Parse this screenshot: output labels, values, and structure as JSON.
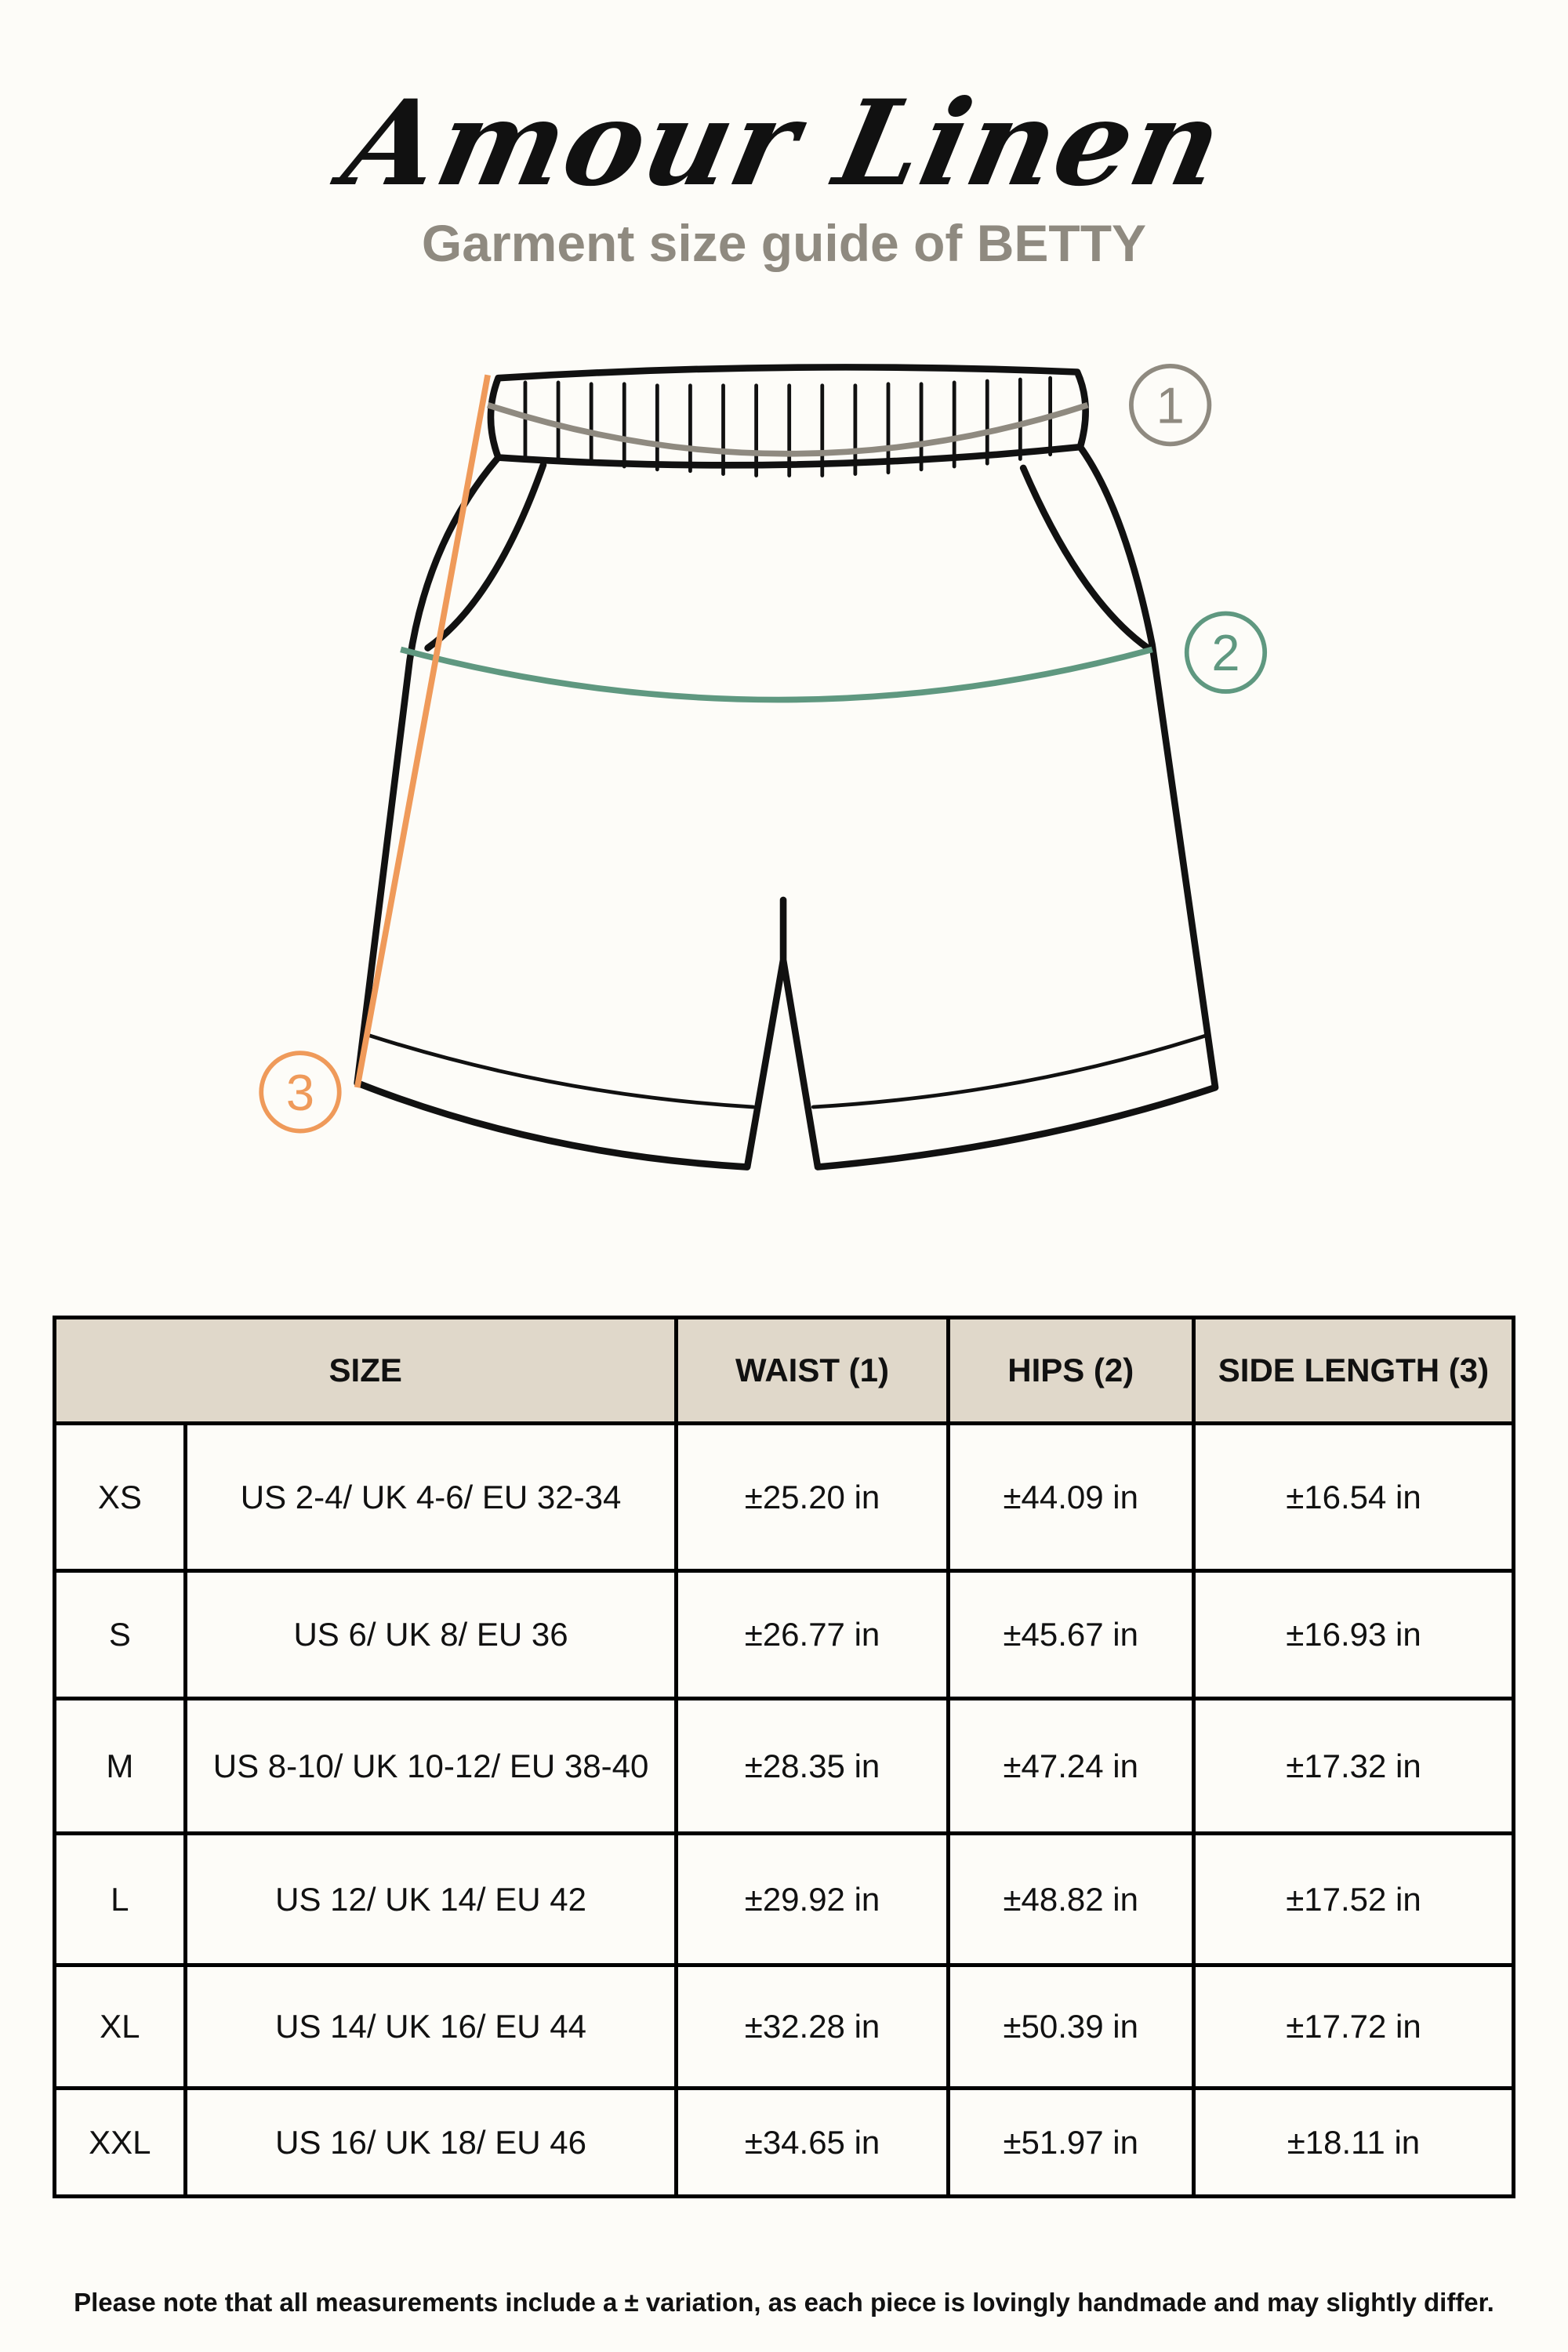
{
  "logo": "Amour Linen",
  "subtitle": "Garment size guide of BETTY",
  "markers": [
    {
      "label": "1",
      "measure": "waist",
      "color": "#8f8a80"
    },
    {
      "label": "2",
      "measure": "hips",
      "color": "#5f9880"
    },
    {
      "label": "3",
      "measure": "side length",
      "color": "#ef9a5a"
    }
  ],
  "table": {
    "headers": [
      "SIZE",
      "WAIST (1)",
      "HIPS (2)",
      "SIDE LENGTH (3)"
    ],
    "rows": [
      {
        "size": "XS",
        "intl": "US 2-4/ UK 4-6/ EU 32-34",
        "waist": "±25.20 in",
        "hips": "±44.09 in",
        "side": "±16.54 in"
      },
      {
        "size": "S",
        "intl": "US 6/ UK 8/ EU 36",
        "waist": "±26.77 in",
        "hips": "±45.67 in",
        "side": "±16.93 in"
      },
      {
        "size": "M",
        "intl": "US 8-10/ UK 10-12/ EU 38-40",
        "waist": "±28.35 in",
        "hips": "±47.24 in",
        "side": "±17.32 in"
      },
      {
        "size": "L",
        "intl": "US 12/ UK 14/ EU 42",
        "waist": "±29.92 in",
        "hips": "±48.82 in",
        "side": "±17.52 in"
      },
      {
        "size": "XL",
        "intl": "US 14/ UK 16/ EU 44",
        "waist": "±32.28 in",
        "hips": "±50.39 in",
        "side": "±17.72 in"
      },
      {
        "size": "XXL",
        "intl": "US 16/ UK 18/ EU 46",
        "waist": "±34.65 in",
        "hips": "±51.97 in",
        "side": "±18.11 in"
      }
    ]
  },
  "footer": "Please note that all measurements include a ± variation, as each piece is lovingly handmade and may slightly differ."
}
